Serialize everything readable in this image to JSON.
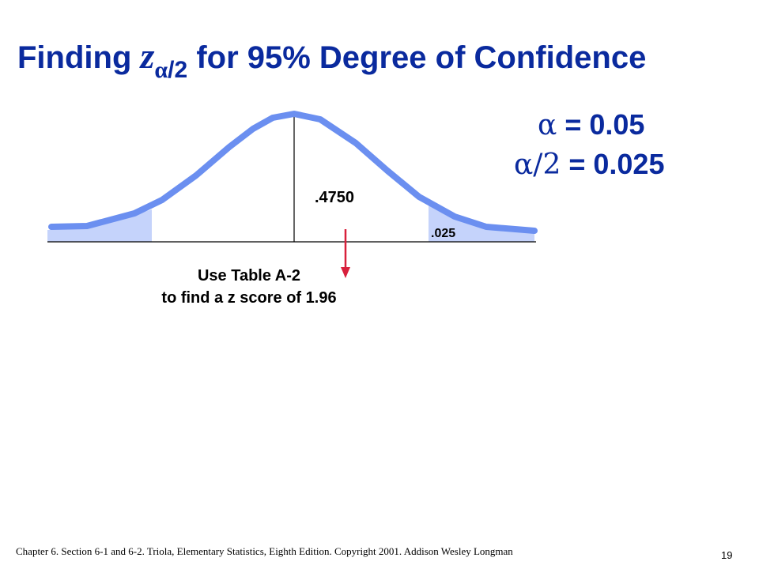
{
  "slide": {
    "title_prefix": "Finding ",
    "title_z": "z",
    "title_sub_alpha": "α",
    "title_sub_slash": "/2",
    "title_suffix": " for 95% Degree of Confidence"
  },
  "alpha": {
    "line1_symbol": "α",
    "line1_value": " = 0.05",
    "line2_symbol": "α/2",
    "line2_value": " = 0.025"
  },
  "diagram": {
    "center_area_label": ".4750",
    "right_tail_label": ".025",
    "instruction_line1": "Use Table A-2",
    "instruction_line2": "to find a z score of 1.96"
  },
  "colors": {
    "title": "#0a2a9e",
    "curve": "#6b8ff0",
    "tail_fill": "#c5d3fb",
    "arrow": "#d8203c"
  },
  "footer": {
    "citation": "Chapter 6.  Section 6-1 and 6-2.  Triola, Elementary Statistics, Eighth Edition. Copyright  2001.  Addison Wesley Longman",
    "page_number": "19"
  }
}
